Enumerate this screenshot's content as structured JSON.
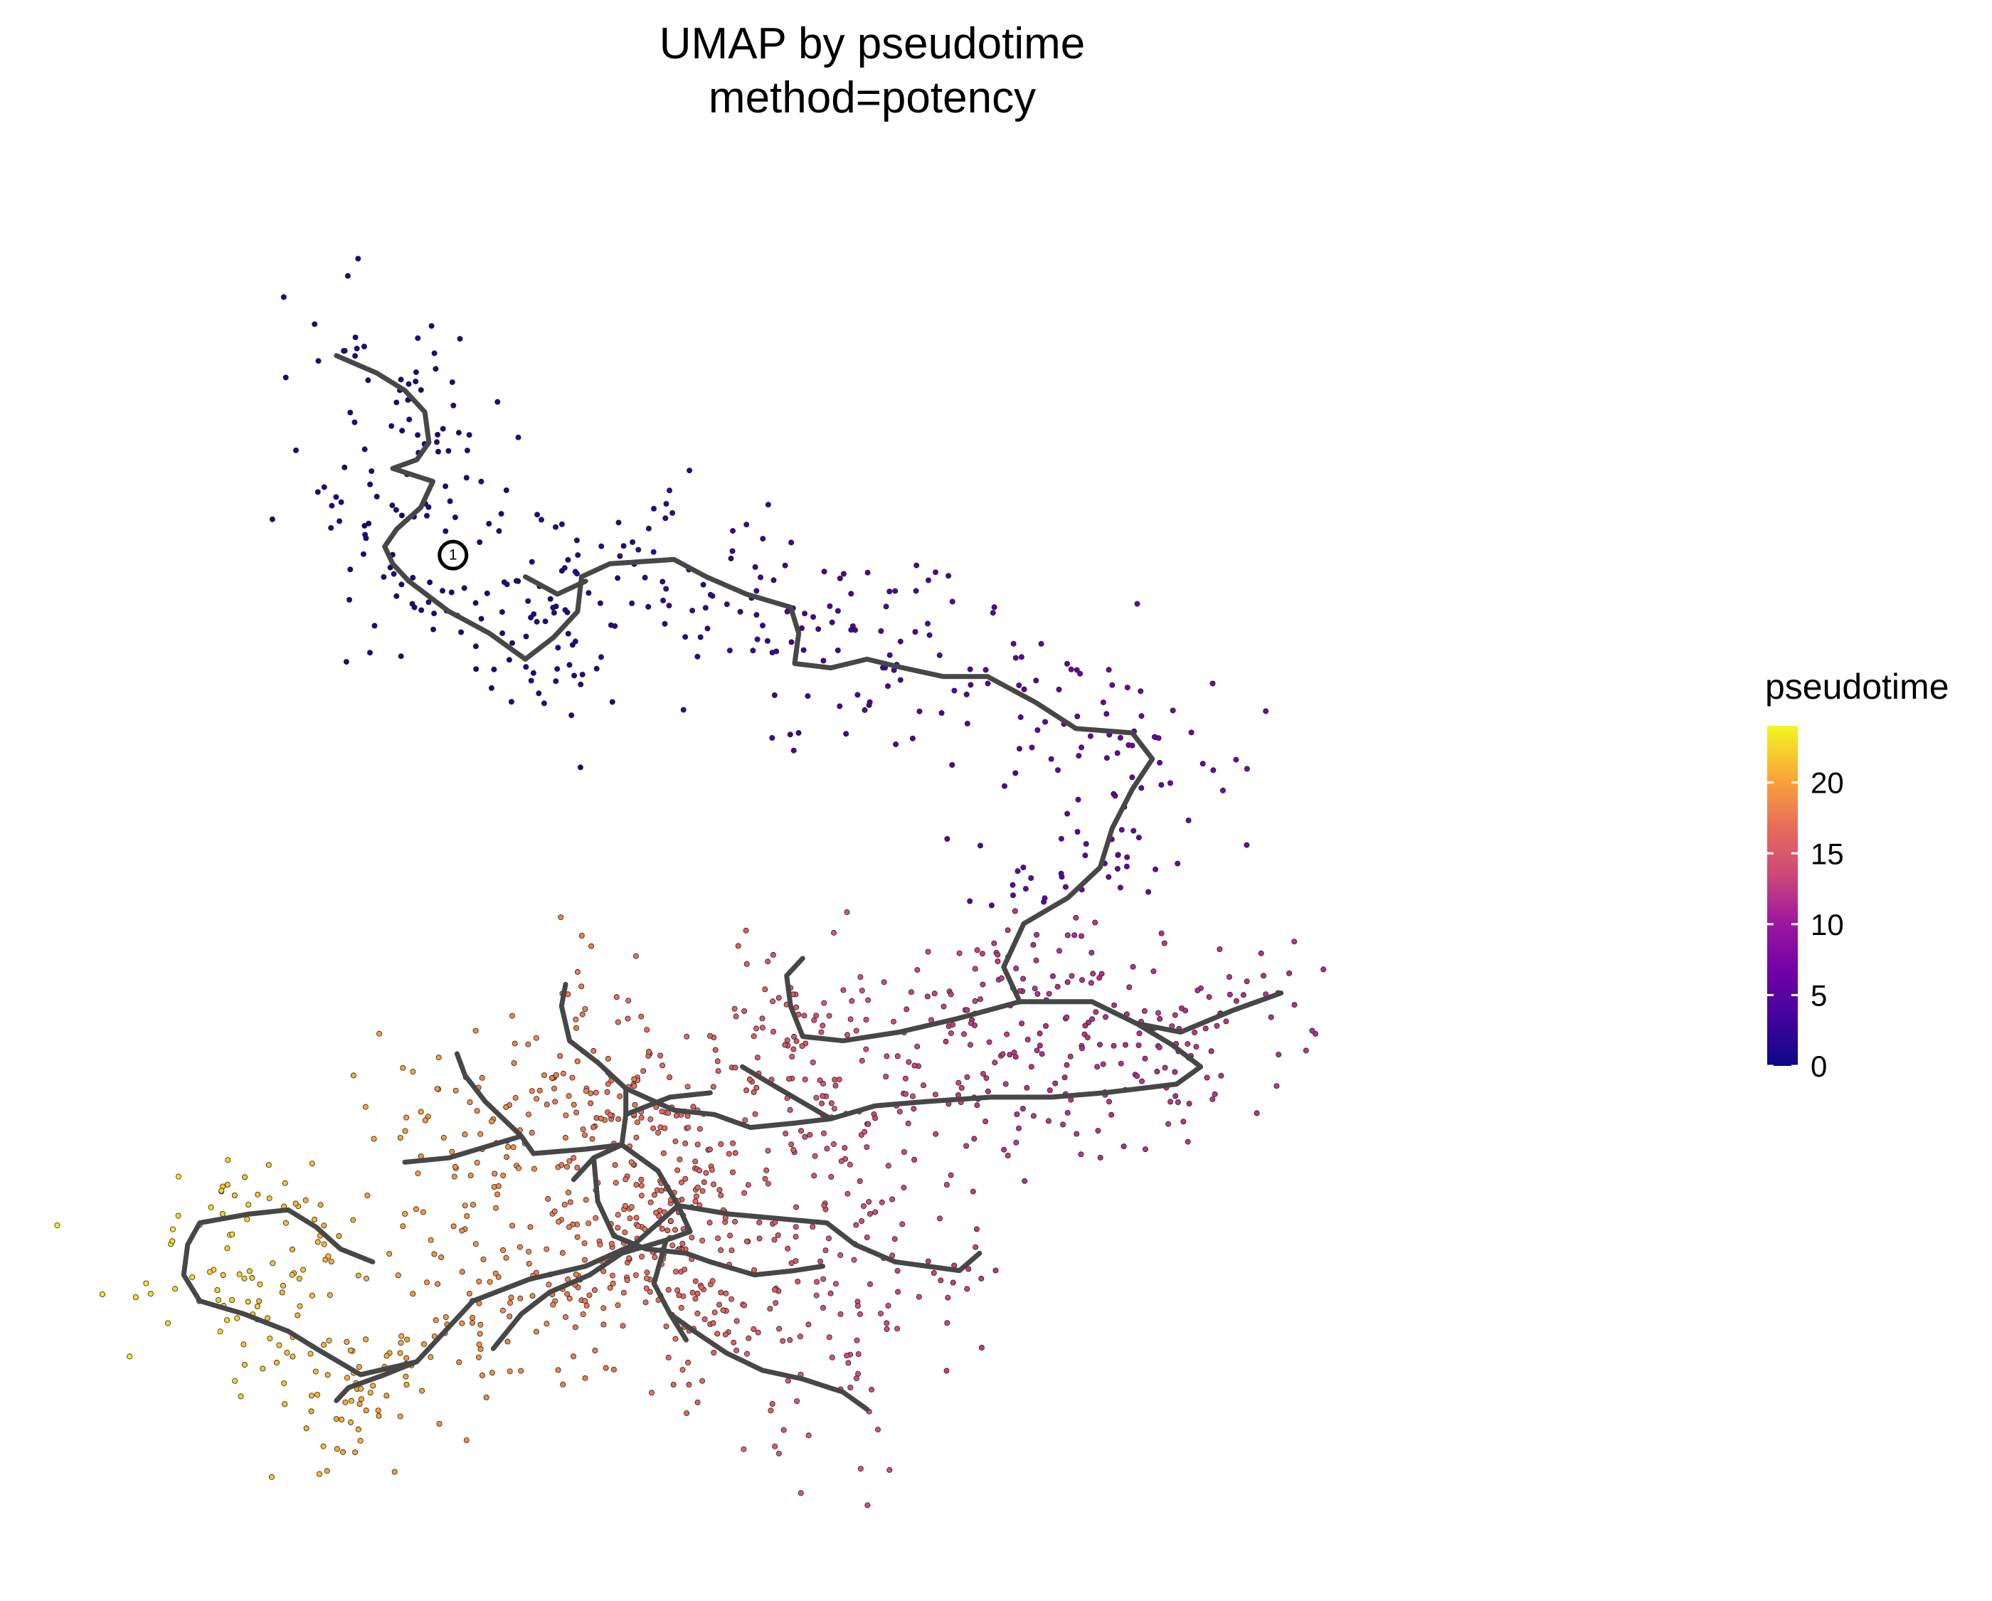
{
  "chart_data": {
    "type": "scatter",
    "title": "UMAP by pseudotime",
    "subtitle": "method=potency",
    "xlabel": "",
    "ylabel": "",
    "axes_visible": false,
    "grid": false,
    "xlim": [
      -10,
      10
    ],
    "ylim": [
      -8,
      8
    ],
    "color_by": "pseudotime",
    "colorscale": "plasma",
    "colors": {
      "low": "#0d0887",
      "mid": "#cc4778",
      "high": "#f0f921",
      "trajectory": "#474747"
    },
    "legend": {
      "title": "pseudotime",
      "position": "right",
      "range": [
        0,
        24
      ],
      "ticks": [
        0,
        5,
        10,
        15,
        20
      ],
      "tick_labels": [
        "0",
        "5",
        "10",
        "15",
        "20"
      ]
    },
    "root_node": {
      "label": "1",
      "x": -5.25,
      "y": 3.65
    },
    "trajectory": [
      [
        [
          -6.7,
          5.95
        ],
        [
          -6.2,
          5.75
        ],
        [
          -5.85,
          5.55
        ],
        [
          -5.6,
          5.3
        ],
        [
          -5.55,
          4.95
        ],
        [
          -5.7,
          4.75
        ],
        [
          -6.0,
          4.65
        ],
        [
          -5.5,
          4.5
        ],
        [
          -5.65,
          4.2
        ],
        [
          -5.95,
          3.95
        ],
        [
          -6.1,
          3.75
        ],
        [
          -6.0,
          3.55
        ],
        [
          -5.8,
          3.35
        ]
      ],
      [
        [
          -5.8,
          3.35
        ],
        [
          -5.3,
          3.0
        ],
        [
          -4.8,
          2.75
        ],
        [
          -4.35,
          2.45
        ]
      ],
      [
        [
          -4.35,
          2.45
        ],
        [
          -4.0,
          2.7
        ],
        [
          -3.7,
          3.0
        ],
        [
          -3.65,
          3.4
        ],
        [
          -3.3,
          3.55
        ],
        [
          -2.5,
          3.6
        ],
        [
          -2.1,
          3.4
        ],
        [
          -1.6,
          3.2
        ],
        [
          -1.05,
          3.05
        ],
        [
          -0.95,
          2.75
        ],
        [
          -1.0,
          2.4
        ],
        [
          -0.55,
          2.35
        ],
        [
          -0.1,
          2.45
        ],
        [
          0.35,
          2.35
        ],
        [
          0.85,
          2.25
        ],
        [
          1.4,
          2.25
        ],
        [
          2.0,
          1.95
        ],
        [
          2.5,
          1.65
        ],
        [
          3.2,
          1.6
        ],
        [
          3.45,
          1.3
        ],
        [
          3.2,
          0.95
        ],
        [
          2.95,
          0.5
        ],
        [
          2.8,
          0.05
        ],
        [
          2.4,
          -0.3
        ],
        [
          1.85,
          -0.6
        ],
        [
          1.6,
          -1.1
        ],
        [
          1.8,
          -1.5
        ]
      ],
      [
        [
          -4.35,
          3.4
        ],
        [
          -3.95,
          3.2
        ],
        [
          -3.6,
          3.35
        ]
      ],
      [
        [
          1.8,
          -1.5
        ],
        [
          1.0,
          -1.7
        ],
        [
          0.3,
          -1.85
        ],
        [
          -0.4,
          -1.95
        ],
        [
          -0.9,
          -1.9
        ],
        [
          -1.05,
          -1.55
        ],
        [
          -1.1,
          -1.2
        ],
        [
          -0.9,
          -1.0
        ]
      ],
      [
        [
          1.8,
          -1.5
        ],
        [
          2.7,
          -1.5
        ],
        [
          3.25,
          -1.75
        ],
        [
          3.8,
          -1.85
        ],
        [
          4.45,
          -1.6
        ],
        [
          5.05,
          -1.4
        ]
      ],
      [
        [
          3.25,
          -1.75
        ],
        [
          3.7,
          -2.0
        ],
        [
          4.05,
          -2.25
        ],
        [
          3.75,
          -2.45
        ],
        [
          2.85,
          -2.55
        ],
        [
          2.2,
          -2.6
        ],
        [
          1.45,
          -2.6
        ],
        [
          0.65,
          -2.65
        ],
        [
          0.0,
          -2.7
        ],
        [
          -0.55,
          -2.85
        ],
        [
          -1.0,
          -2.9
        ],
        [
          -1.55,
          -2.95
        ]
      ],
      [
        [
          -0.55,
          -2.85
        ],
        [
          -1.2,
          -2.5
        ],
        [
          -1.65,
          -2.25
        ]
      ],
      [
        [
          -1.55,
          -2.95
        ],
        [
          -2.0,
          -2.8
        ],
        [
          -2.5,
          -2.75
        ],
        [
          -3.1,
          -2.5
        ],
        [
          -3.45,
          -2.2
        ],
        [
          -3.8,
          -1.95
        ],
        [
          -3.9,
          -1.55
        ],
        [
          -3.85,
          -1.3
        ]
      ],
      [
        [
          -3.1,
          -2.5
        ],
        [
          -3.1,
          -2.8
        ],
        [
          -3.15,
          -3.15
        ],
        [
          -3.5,
          -3.3
        ],
        [
          -3.75,
          -3.55
        ]
      ],
      [
        [
          -3.15,
          -3.15
        ],
        [
          -3.6,
          -3.2
        ],
        [
          -4.25,
          -3.25
        ],
        [
          -4.4,
          -3.05
        ]
      ],
      [
        [
          -4.4,
          -3.05
        ],
        [
          -4.85,
          -2.65
        ],
        [
          -5.1,
          -2.35
        ],
        [
          -5.2,
          -2.1
        ]
      ],
      [
        [
          -4.4,
          -3.05
        ],
        [
          -5.3,
          -3.3
        ],
        [
          -5.85,
          -3.35
        ]
      ],
      [
        [
          -3.5,
          -3.3
        ],
        [
          -3.45,
          -3.8
        ],
        [
          -3.25,
          -4.2
        ],
        [
          -2.85,
          -4.35
        ],
        [
          -2.35,
          -4.4
        ],
        [
          -2.05,
          -4.5
        ],
        [
          -1.5,
          -4.65
        ],
        [
          -1.0,
          -4.6
        ],
        [
          -0.65,
          -4.55
        ]
      ],
      [
        [
          -3.1,
          -2.8
        ],
        [
          -2.55,
          -2.6
        ],
        [
          -2.05,
          -2.55
        ]
      ],
      [
        [
          -3.15,
          -3.15
        ],
        [
          -2.7,
          -3.45
        ],
        [
          -2.45,
          -3.85
        ],
        [
          -2.3,
          -4.15
        ],
        [
          -2.6,
          -4.25
        ],
        [
          -3.15,
          -4.4
        ],
        [
          -3.55,
          -4.65
        ],
        [
          -4.05,
          -4.85
        ],
        [
          -4.4,
          -5.1
        ],
        [
          -4.75,
          -5.5
        ]
      ],
      [
        [
          -2.45,
          -3.85
        ],
        [
          -1.8,
          -3.95
        ],
        [
          -1.2,
          -4.0
        ],
        [
          -0.6,
          -4.05
        ],
        [
          -0.25,
          -4.3
        ],
        [
          0.25,
          -4.5
        ],
        [
          0.65,
          -4.55
        ],
        [
          1.05,
          -4.6
        ],
        [
          1.3,
          -4.4
        ]
      ],
      [
        [
          -2.45,
          -3.85
        ],
        [
          -3.0,
          -4.3
        ],
        [
          -3.6,
          -4.55
        ],
        [
          -4.3,
          -4.7
        ],
        [
          -5.0,
          -4.95
        ],
        [
          -5.35,
          -5.3
        ],
        [
          -5.7,
          -5.65
        ],
        [
          -6.4,
          -5.8
        ],
        [
          -6.95,
          -5.5
        ],
        [
          -7.3,
          -5.3
        ],
        [
          -7.85,
          -5.1
        ],
        [
          -8.4,
          -4.95
        ],
        [
          -8.6,
          -4.65
        ],
        [
          -8.55,
          -4.3
        ],
        [
          -8.4,
          -4.05
        ],
        [
          -7.8,
          -3.95
        ],
        [
          -7.3,
          -3.9
        ],
        [
          -6.95,
          -4.1
        ],
        [
          -6.65,
          -4.35
        ],
        [
          -6.25,
          -4.5
        ]
      ],
      [
        [
          -5.7,
          -5.65
        ],
        [
          -6.1,
          -5.8
        ],
        [
          -6.55,
          -5.95
        ],
        [
          -6.7,
          -6.1
        ]
      ],
      [
        [
          -2.6,
          -4.25
        ],
        [
          -2.75,
          -4.75
        ],
        [
          -2.55,
          -5.1
        ],
        [
          -2.35,
          -5.4
        ]
      ],
      [
        [
          -2.55,
          -5.1
        ],
        [
          -2.25,
          -5.3
        ],
        [
          -1.85,
          -5.55
        ],
        [
          -1.4,
          -5.75
        ],
        [
          -0.9,
          -5.85
        ],
        [
          -0.4,
          -6.0
        ],
        [
          -0.1,
          -6.2
        ]
      ]
    ]
  }
}
